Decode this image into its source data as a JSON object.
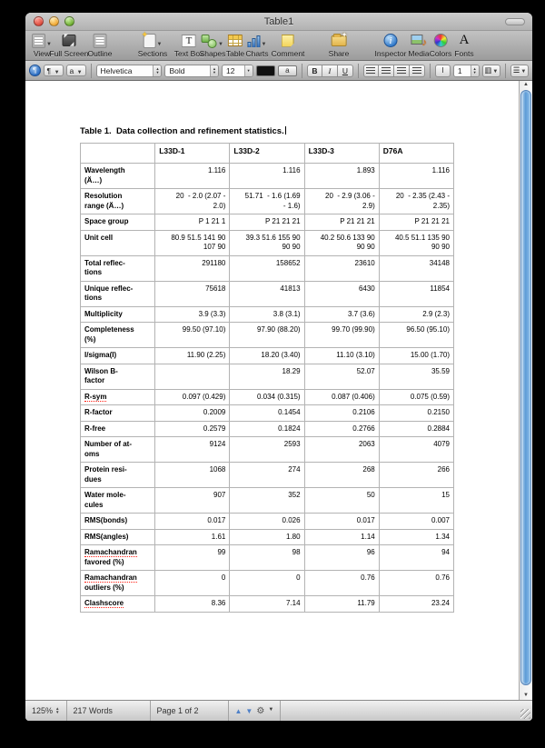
{
  "window": {
    "title": "Table1"
  },
  "toolbar": {
    "items": [
      {
        "label": "View",
        "icon": "view-icon",
        "dropdown": true
      },
      {
        "label": "Full Screen",
        "icon": "full-screen-icon"
      },
      {
        "label": "Outline",
        "icon": "outline-icon"
      },
      {
        "label": "Sections",
        "icon": "sections-icon",
        "dropdown": true
      },
      {
        "label": "Text Box",
        "icon": "text-box-icon"
      },
      {
        "label": "Shapes",
        "icon": "shapes-icon",
        "dropdown": true
      },
      {
        "label": "Table",
        "icon": "table-icon"
      },
      {
        "label": "Charts",
        "icon": "charts-icon",
        "dropdown": true
      },
      {
        "label": "Comment",
        "icon": "comment-icon"
      },
      {
        "label": "Share",
        "icon": "share-icon"
      },
      {
        "label": "Inspector",
        "icon": "inspector-icon"
      },
      {
        "label": "Media",
        "icon": "media-icon"
      },
      {
        "label": "Colors",
        "icon": "colors-icon"
      },
      {
        "label": "Fonts",
        "icon": "fonts-icon"
      }
    ]
  },
  "format_bar": {
    "paragraph_style_glyph": "¶",
    "character_style_glyph": "a",
    "font_family": "Helvetica",
    "typeface": "Bold",
    "font_size": "12",
    "bold_label": "B",
    "italic_label": "I",
    "underline_label": "U",
    "line_spacing_value": "1",
    "highlight_well_glyph": "a"
  },
  "document": {
    "title": "Table 1.  Data collection and refinement statistics.",
    "table": {
      "columns": [
        "",
        "L33D-1",
        "L33D-2",
        "L33D-3",
        "D76A"
      ],
      "rows": [
        {
          "label": "Wavelength\n(Ä…)",
          "values": [
            "1.116",
            "1.116",
            "1.893",
            "1.116"
          ]
        },
        {
          "label": "Resolution\nrange (Ä…)",
          "values": [
            "20  - 2.0 (2.07 -\n2.0)",
            "51.71  - 1.6 (1.69\n- 1.6)",
            "20  - 2.9 (3.06 -\n2.9)",
            "20  - 2.35 (2.43 -\n2.35)"
          ]
        },
        {
          "label": "Space group",
          "values": [
            "P 1 21 1",
            "P 21 21 21",
            "P 21 21 21",
            "P 21 21 21"
          ]
        },
        {
          "label": "Unit cell",
          "values": [
            "80.9 51.5 141 90\n107 90",
            "39.3 51.6 155 90\n90 90",
            "40.2 50.6 133 90\n90 90",
            "40.5 51.1 135 90\n90 90"
          ]
        },
        {
          "label": "Total reflec-\ntions",
          "values": [
            "291180",
            "158652",
            "23610",
            "34148"
          ]
        },
        {
          "label": "Unique reflec-\ntions",
          "values": [
            "75618",
            "41813",
            "6430",
            "11854"
          ]
        },
        {
          "label": "Multiplicity",
          "values": [
            "3.9 (3.3)",
            "3.8 (3.1)",
            "3.7 (3.6)",
            "2.9 (2.3)"
          ]
        },
        {
          "label": "Completeness\n(%)",
          "values": [
            "99.50 (97.10)",
            "97.90 (88.20)",
            "99.70 (99.90)",
            "96.50 (95.10)"
          ]
        },
        {
          "label": "I/sigma(I)",
          "values": [
            "11.90 (2.25)",
            "18.20 (3.40)",
            "11.10 (3.10)",
            "15.00 (1.70)"
          ]
        },
        {
          "label": "Wilson B-\nfactor",
          "values": [
            "",
            "18.29",
            "52.07",
            "35.59"
          ]
        },
        {
          "label": "R-sym",
          "misspelled": true,
          "values": [
            "0.097 (0.429)",
            "0.034 (0.315)",
            "0.087 (0.406)",
            "0.075 (0.59)"
          ]
        },
        {
          "label": "R-factor",
          "values": [
            "0.2009",
            "0.1454",
            "0.2106",
            "0.2150"
          ]
        },
        {
          "label": "R-free",
          "values": [
            "0.2579",
            "0.1824",
            "0.2766",
            "0.2884"
          ]
        },
        {
          "label": "Number of at-\noms",
          "values": [
            "9124",
            "2593",
            "2063",
            "4079"
          ]
        },
        {
          "label": "Protein resi-\ndues",
          "values": [
            "1068",
            "274",
            "268",
            "266"
          ]
        },
        {
          "label": "Water mole-\ncules",
          "values": [
            "907",
            "352",
            "50",
            "15"
          ]
        },
        {
          "label": "RMS(bonds)",
          "values": [
            "0.017",
            "0.026",
            "0.017",
            "0.007"
          ]
        },
        {
          "label": "RMS(angles)",
          "values": [
            "1.61",
            "1.80",
            "1.14",
            "1.34"
          ]
        },
        {
          "label": "Ramachandran\nfavored (%)",
          "misspelled": true,
          "values": [
            "99",
            "98",
            "96",
            "94"
          ]
        },
        {
          "label": "Ramachandran\noutliers (%)",
          "misspelled": true,
          "values": [
            "0",
            "0",
            "0.76",
            "0.76"
          ]
        },
        {
          "label": "Clashscore",
          "misspelled": true,
          "values": [
            "8.36",
            "7.14",
            "11.79",
            "23.24"
          ]
        }
      ]
    }
  },
  "status_bar": {
    "zoom_level": "125%",
    "word_count": "217 Words",
    "page_indicator": "Page 1 of 2"
  },
  "colors": {
    "scrollbar_thumb": "#5d9bd7",
    "misspell_underline": "#ff1f14",
    "chrome_gray": "#b2b2b2"
  }
}
